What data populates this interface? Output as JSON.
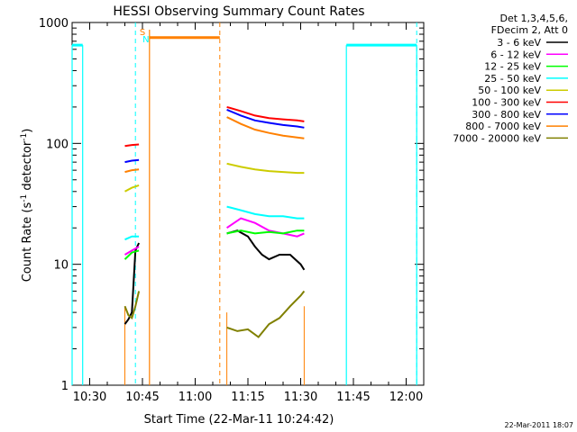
{
  "chart_data": {
    "type": "line",
    "title": "HESSI Observing Summary Count Rates",
    "xlabel": "Start Time (22-Mar-11 10:24:42)",
    "ylabel_main": "Count Rate (s",
    "ylabel_sup1": "-1",
    "ylabel_mid": " detector",
    "ylabel_sup2": "-1",
    "ylabel_end": ")",
    "yscale": "log",
    "ylim": [
      1,
      1000
    ],
    "xlim": [
      "10:25",
      "12:05"
    ],
    "x_ticks": [
      "10:30",
      "10:45",
      "11:00",
      "11:15",
      "11:30",
      "11:45",
      "12:00"
    ],
    "y_ticks": [
      "1",
      "10",
      "100",
      "1000"
    ],
    "legend_header": [
      "Det 1,3,4,5,6,",
      "FDecim 2, Att 0"
    ],
    "legend_position": "top-right outside",
    "timestamp": "22-Mar-2011 18:07",
    "markers": [
      {
        "label": "S",
        "time": "10:45",
        "color": "#ff8000"
      },
      {
        "label": "N",
        "time": "10:46",
        "color": "#00ffff"
      }
    ],
    "intervals": {
      "night_level": 650,
      "night_color": "#00ffff",
      "night": [
        [
          "10:25",
          "10:28"
        ],
        [
          "11:43",
          "12:03"
        ]
      ],
      "saa_level": 750,
      "saa_color": "#ff8000",
      "saa": [
        [
          "10:47",
          "11:07"
        ]
      ],
      "dashed_cyan": [
        "10:43",
        "12:03"
      ],
      "dashed_orange": [
        "11:07"
      ]
    },
    "series": [
      {
        "name": "3 - 6 keV",
        "color": "#000000",
        "a": {
          "time": [
            "10:40",
            "10:41",
            "10:42",
            "10:43",
            "10:44"
          ],
          "values": [
            3.2,
            3.5,
            4,
            13,
            15
          ]
        },
        "b": {
          "time": [
            "11:09",
            "11:12",
            "11:15",
            "11:17",
            "11:19",
            "11:21",
            "11:24",
            "11:27",
            "11:30",
            "11:31"
          ],
          "values": [
            18,
            19,
            17,
            14,
            12,
            11,
            12,
            12,
            10,
            9
          ]
        }
      },
      {
        "name": "6 - 12 keV",
        "color": "#ff00ff",
        "a": {
          "time": [
            "10:40",
            "10:42",
            "10:44"
          ],
          "values": [
            12,
            13,
            14
          ]
        },
        "b": {
          "time": [
            "11:09",
            "11:13",
            "11:17",
            "11:21",
            "11:25",
            "11:29",
            "11:31"
          ],
          "values": [
            20,
            24,
            22,
            19,
            18,
            17,
            18
          ]
        }
      },
      {
        "name": "12 - 25 keV",
        "color": "#00ff00",
        "a": {
          "time": [
            "10:40",
            "10:42",
            "10:44"
          ],
          "values": [
            11,
            12.5,
            13
          ]
        },
        "b": {
          "time": [
            "11:09",
            "11:13",
            "11:17",
            "11:21",
            "11:25",
            "11:29",
            "11:31"
          ],
          "values": [
            18,
            19,
            18,
            18.5,
            18,
            19,
            19
          ]
        }
      },
      {
        "name": "25 - 50 keV",
        "color": "#00ffff",
        "a": {
          "time": [
            "10:40",
            "10:42",
            "10:44"
          ],
          "values": [
            16,
            17,
            17
          ]
        },
        "b": {
          "time": [
            "11:09",
            "11:13",
            "11:17",
            "11:21",
            "11:25",
            "11:29",
            "11:31"
          ],
          "values": [
            30,
            28,
            26,
            25,
            25,
            24,
            24
          ]
        }
      },
      {
        "name": "50 - 100 keV",
        "color": "#cccc00",
        "a": {
          "time": [
            "10:40",
            "10:42",
            "10:44"
          ],
          "values": [
            40,
            43,
            45
          ]
        },
        "b": {
          "time": [
            "11:09",
            "11:13",
            "11:17",
            "11:21",
            "11:25",
            "11:29",
            "11:31"
          ],
          "values": [
            68,
            64,
            61,
            59,
            58,
            57,
            57
          ]
        }
      },
      {
        "name": "100 - 300 keV",
        "color": "#ff0000",
        "a": {
          "time": [
            "10:40",
            "10:42",
            "10:44"
          ],
          "values": [
            95,
            97,
            98
          ]
        },
        "b": {
          "time": [
            "11:09",
            "11:13",
            "11:17",
            "11:21",
            "11:25",
            "11:29",
            "11:31"
          ],
          "values": [
            200,
            185,
            170,
            162,
            158,
            155,
            152
          ]
        }
      },
      {
        "name": "300 - 800 keV",
        "color": "#0000ff",
        "a": {
          "time": [
            "10:40",
            "10:42",
            "10:44"
          ],
          "values": [
            70,
            72,
            73
          ]
        },
        "b": {
          "time": [
            "11:09",
            "11:13",
            "11:17",
            "11:21",
            "11:25",
            "11:29",
            "11:31"
          ],
          "values": [
            190,
            170,
            155,
            148,
            142,
            138,
            135
          ]
        }
      },
      {
        "name": "800 - 7000 keV",
        "color": "#ff8000",
        "a": {
          "time": [
            "10:40",
            "10:42",
            "10:44"
          ],
          "values": [
            58,
            60,
            61
          ]
        },
        "b": {
          "time": [
            "11:09",
            "11:13",
            "11:17",
            "11:21",
            "11:25",
            "11:29",
            "11:31"
          ],
          "values": [
            165,
            145,
            130,
            122,
            116,
            112,
            110
          ]
        }
      },
      {
        "name": "7000 - 20000 keV",
        "color": "#808000",
        "a": {
          "time": [
            "10:40",
            "10:41",
            "10:42",
            "10:43",
            "10:44"
          ],
          "values": [
            4.5,
            3.8,
            3.6,
            4.5,
            6
          ]
        },
        "b": {
          "time": [
            "11:09",
            "11:12",
            "11:15",
            "11:18",
            "11:21",
            "11:24",
            "11:27",
            "11:30",
            "11:31"
          ],
          "values": [
            3,
            2.8,
            2.9,
            2.5,
            3.2,
            3.6,
            4.5,
            5.5,
            6
          ]
        }
      }
    ]
  }
}
